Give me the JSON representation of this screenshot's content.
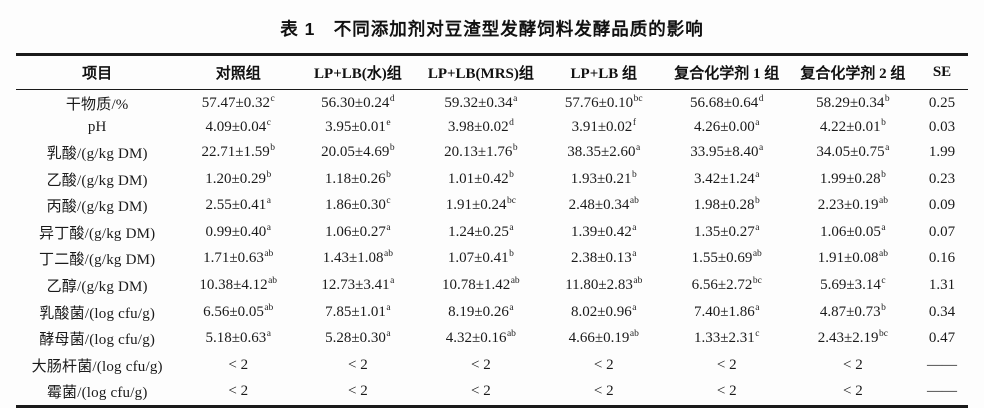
{
  "title": "表 1　不同添加剂对豆渣型发酵饲料发酵品质的影响",
  "table": {
    "headers": [
      "项目",
      "对照组",
      "LP+LB(水)组",
      "LP+LB(MRS)组",
      "LP+LB 组",
      "复合化学剂 1 组",
      "复合化学剂 2 组",
      "SE"
    ],
    "rows": [
      {
        "label": "干物质/%",
        "cells": [
          [
            "57.47±0.32",
            "c"
          ],
          [
            "56.30±0.24",
            "d"
          ],
          [
            "59.32±0.34",
            "a"
          ],
          [
            "57.76±0.10",
            "bc"
          ],
          [
            "56.68±0.64",
            "d"
          ],
          [
            "58.29±0.34",
            "b"
          ]
        ],
        "se": "0.25"
      },
      {
        "label": "pH",
        "cells": [
          [
            "4.09±0.04",
            "c"
          ],
          [
            "3.95±0.01",
            "e"
          ],
          [
            "3.98±0.02",
            "d"
          ],
          [
            "3.91±0.02",
            "f"
          ],
          [
            "4.26±0.00",
            "a"
          ],
          [
            "4.22±0.01",
            "b"
          ]
        ],
        "se": "0.03"
      },
      {
        "label": "乳酸/(g/kg DM)",
        "cells": [
          [
            "22.71±1.59",
            "b"
          ],
          [
            "20.05±4.69",
            "b"
          ],
          [
            "20.13±1.76",
            "b"
          ],
          [
            "38.35±2.60",
            "a"
          ],
          [
            "33.95±8.40",
            "a"
          ],
          [
            "34.05±0.75",
            "a"
          ]
        ],
        "se": "1.99"
      },
      {
        "label": "乙酸/(g/kg DM)",
        "cells": [
          [
            "1.20±0.29",
            "b"
          ],
          [
            "1.18±0.26",
            "b"
          ],
          [
            "1.01±0.42",
            "b"
          ],
          [
            "1.93±0.21",
            "b"
          ],
          [
            "3.42±1.24",
            "a"
          ],
          [
            "1.99±0.28",
            "b"
          ]
        ],
        "se": "0.23"
      },
      {
        "label": "丙酸/(g/kg DM)",
        "cells": [
          [
            "2.55±0.41",
            "a"
          ],
          [
            "1.86±0.30",
            "c"
          ],
          [
            "1.91±0.24",
            "bc"
          ],
          [
            "2.48±0.34",
            "ab"
          ],
          [
            "1.98±0.28",
            "b"
          ],
          [
            "2.23±0.19",
            "ab"
          ]
        ],
        "se": "0.09"
      },
      {
        "label": "异丁酸/(g/kg DM)",
        "cells": [
          [
            "0.99±0.40",
            "a"
          ],
          [
            "1.06±0.27",
            "a"
          ],
          [
            "1.24±0.25",
            "a"
          ],
          [
            "1.39±0.42",
            "a"
          ],
          [
            "1.35±0.27",
            "a"
          ],
          [
            "1.06±0.05",
            "a"
          ]
        ],
        "se": "0.07"
      },
      {
        "label": "丁二酸/(g/kg DM)",
        "cells": [
          [
            "1.71±0.63",
            "ab"
          ],
          [
            "1.43±1.08",
            "ab"
          ],
          [
            "1.07±0.41",
            "b"
          ],
          [
            "2.38±0.13",
            "a"
          ],
          [
            "1.55±0.69",
            "ab"
          ],
          [
            "1.91±0.08",
            "ab"
          ]
        ],
        "se": "0.16"
      },
      {
        "label": "乙醇/(g/kg DM)",
        "cells": [
          [
            "10.38±4.12",
            "ab"
          ],
          [
            "12.73±3.41",
            "a"
          ],
          [
            "10.78±1.42",
            "ab"
          ],
          [
            "11.80±2.83",
            "ab"
          ],
          [
            "6.56±2.72",
            "bc"
          ],
          [
            "5.69±3.14",
            "c"
          ]
        ],
        "se": "1.31"
      },
      {
        "label": "乳酸菌/(log cfu/g)",
        "cells": [
          [
            "6.56±0.05",
            "ab"
          ],
          [
            "7.85±1.01",
            "a"
          ],
          [
            "8.19±0.26",
            "a"
          ],
          [
            "8.02±0.96",
            "a"
          ],
          [
            "7.40±1.86",
            "a"
          ],
          [
            "4.87±0.73",
            "b"
          ]
        ],
        "se": "0.34"
      },
      {
        "label": "酵母菌/(log cfu/g)",
        "cells": [
          [
            "5.18±0.63",
            "a"
          ],
          [
            "5.28±0.30",
            "a"
          ],
          [
            "4.32±0.16",
            "ab"
          ],
          [
            "4.66±0.19",
            "ab"
          ],
          [
            "1.33±2.31",
            "c"
          ],
          [
            "2.43±2.19",
            "bc"
          ]
        ],
        "se": "0.47"
      },
      {
        "label": "大肠杆菌/(log cfu/g)",
        "cells": [
          [
            "< 2",
            ""
          ],
          [
            "< 2",
            ""
          ],
          [
            "< 2",
            ""
          ],
          [
            "< 2",
            ""
          ],
          [
            "< 2",
            ""
          ],
          [
            "< 2",
            ""
          ]
        ],
        "se": "——"
      },
      {
        "label": "霉菌/(log cfu/g)",
        "cells": [
          [
            "< 2",
            ""
          ],
          [
            "< 2",
            ""
          ],
          [
            "< 2",
            ""
          ],
          [
            "< 2",
            ""
          ],
          [
            "< 2",
            ""
          ],
          [
            "< 2",
            ""
          ]
        ],
        "se": "——"
      }
    ]
  }
}
